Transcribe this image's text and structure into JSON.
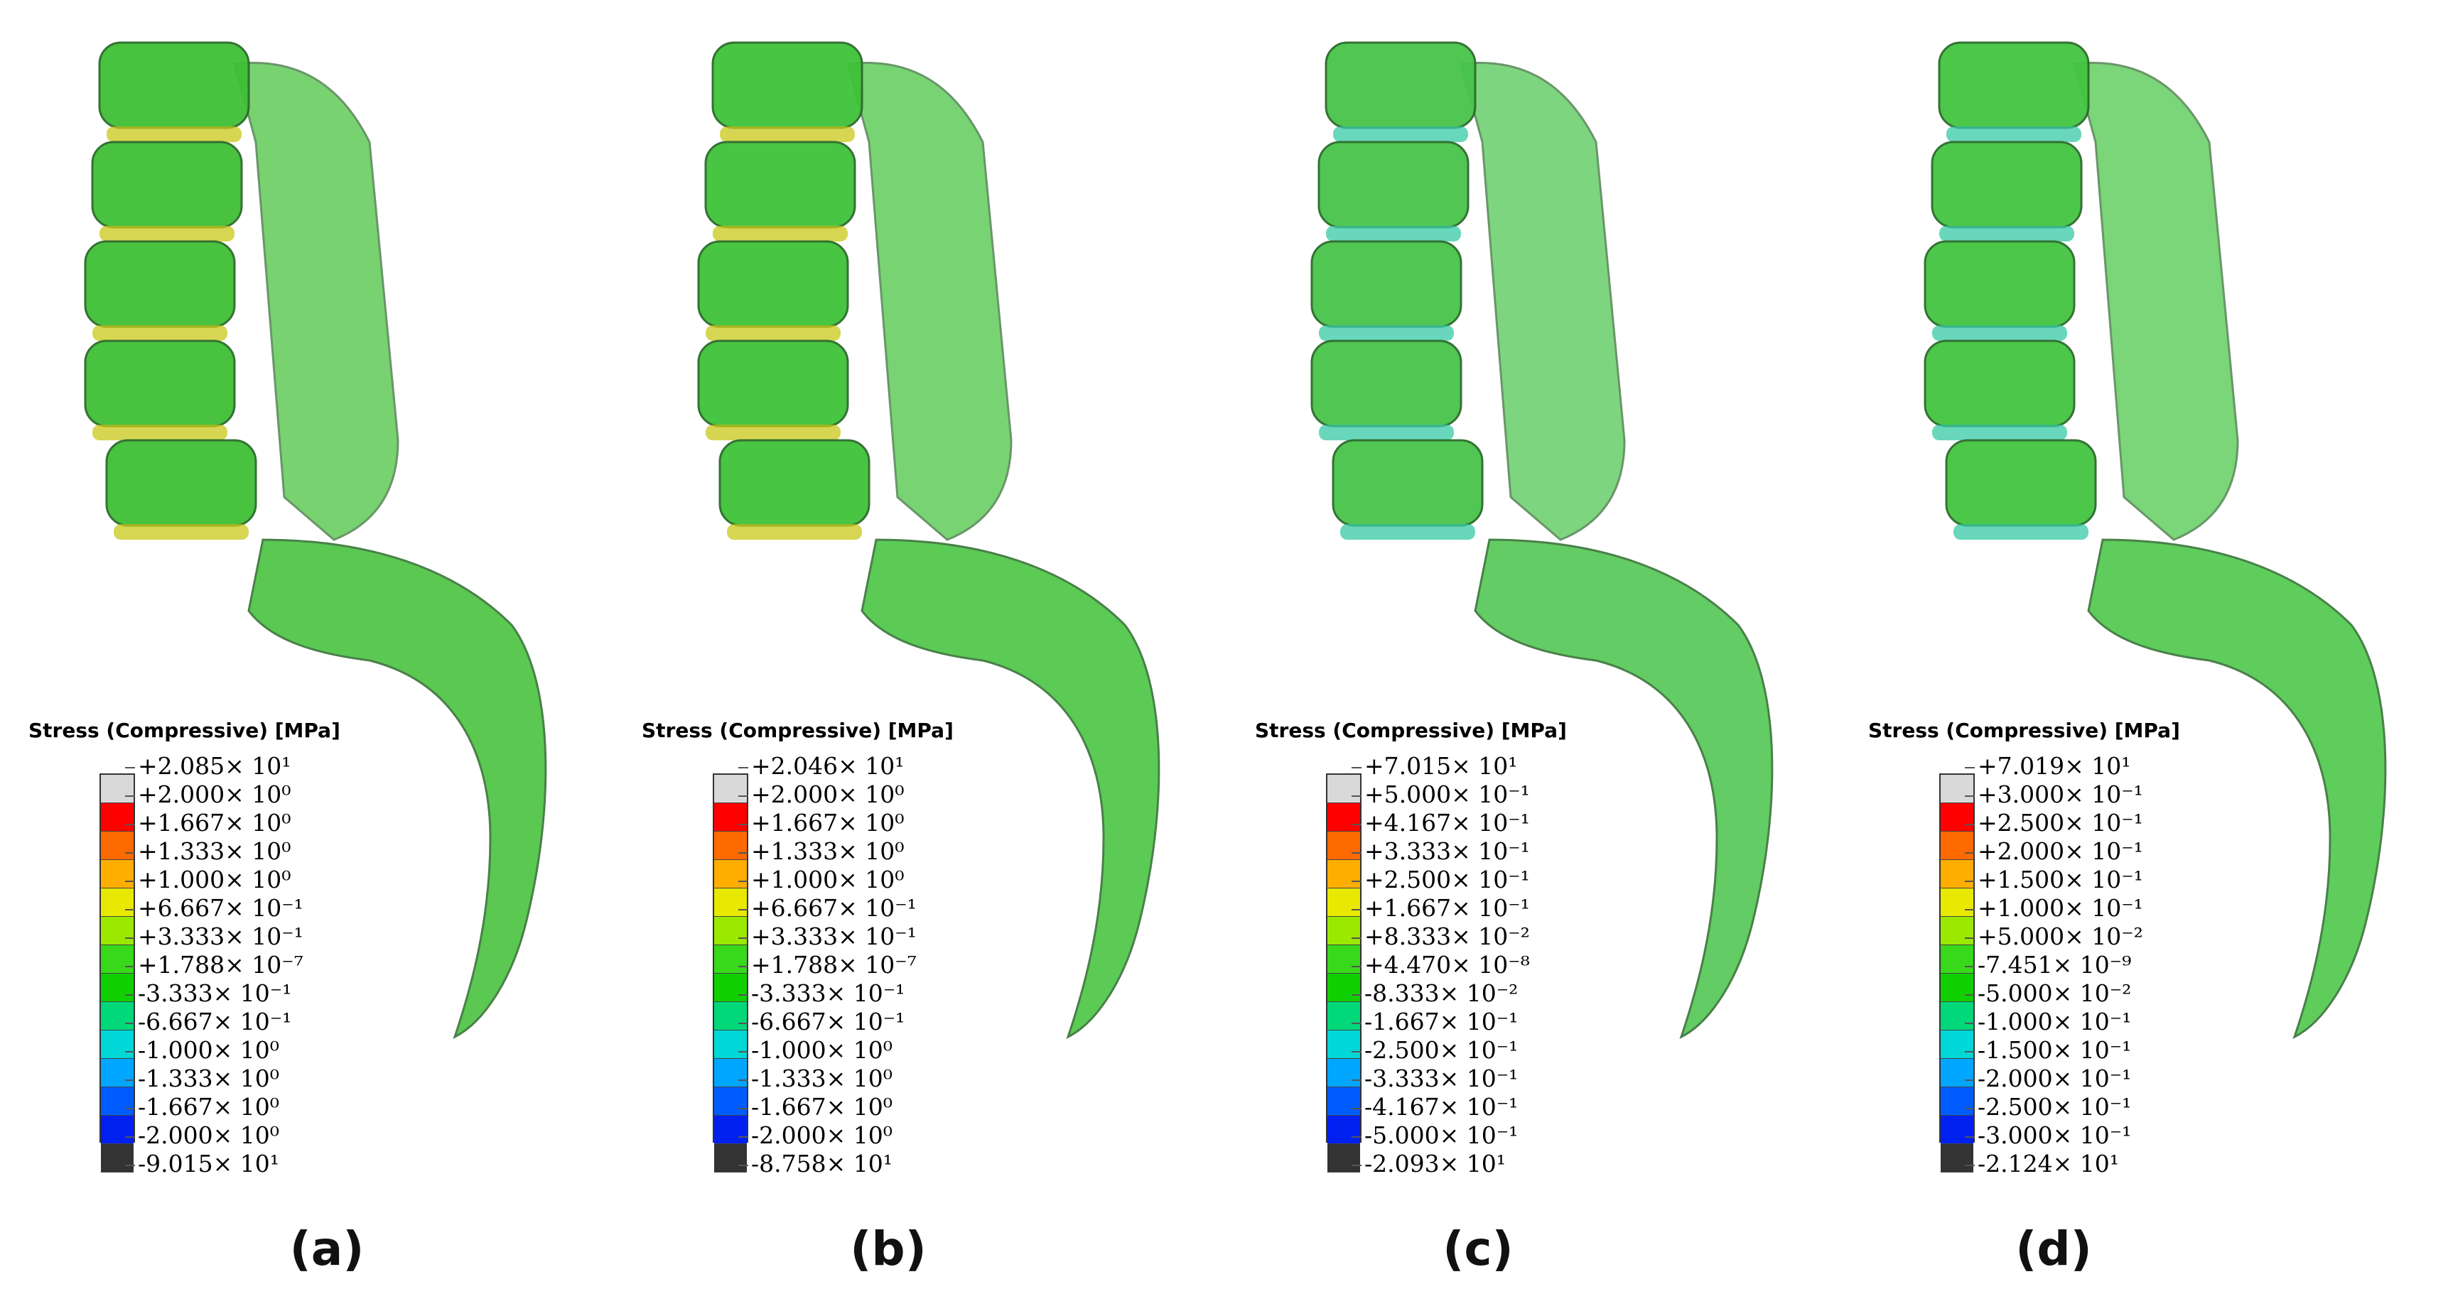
{
  "legend_colors": [
    "#d9d9d9",
    "#ff0000",
    "#ff6a00",
    "#ffae00",
    "#e8e800",
    "#9be800",
    "#38d81a",
    "#10d000",
    "#00d87a",
    "#00d7d7",
    "#00a6ff",
    "#005bff",
    "#0020f0",
    "#333333"
  ],
  "panels": [
    {
      "caption": "(a)",
      "legend_title": "Stress (Compressive) [MPa]",
      "labels": [
        "+2.085× 10¹",
        "+2.000× 10⁰",
        "+1.667× 10⁰",
        "+1.333× 10⁰",
        "+1.000× 10⁰",
        "+6.667× 10⁻¹",
        "+3.333× 10⁻¹",
        "+1.788× 10⁻⁷",
        "-3.333× 10⁻¹",
        "-6.667× 10⁻¹",
        "-1.000× 10⁰",
        "-1.333× 10⁰",
        "-1.667× 10⁰",
        "-2.000× 10⁰",
        "-9.015× 10¹"
      ]
    },
    {
      "caption": "(b)",
      "legend_title": "Stress (Compressive) [MPa]",
      "labels": [
        "+2.046× 10¹",
        "+2.000× 10⁰",
        "+1.667× 10⁰",
        "+1.333× 10⁰",
        "+1.000× 10⁰",
        "+6.667× 10⁻¹",
        "+3.333× 10⁻¹",
        "+1.788× 10⁻⁷",
        "-3.333× 10⁻¹",
        "-6.667× 10⁻¹",
        "-1.000× 10⁰",
        "-1.333× 10⁰",
        "-1.667× 10⁰",
        "-2.000× 10⁰",
        "-8.758× 10¹"
      ]
    },
    {
      "caption": "(c)",
      "legend_title": "Stress (Compressive) [MPa]",
      "labels": [
        "+7.015× 10¹",
        "+5.000× 10⁻¹",
        "+4.167× 10⁻¹",
        "+3.333× 10⁻¹",
        "+2.500× 10⁻¹",
        "+1.667× 10⁻¹",
        "+8.333× 10⁻²",
        "+4.470× 10⁻⁸",
        "-8.333× 10⁻²",
        "-1.667× 10⁻¹",
        "-2.500× 10⁻¹",
        "-3.333× 10⁻¹",
        "-4.167× 10⁻¹",
        "-5.000× 10⁻¹",
        "-2.093× 10¹"
      ]
    },
    {
      "caption": "(d)",
      "legend_title": "Stress (Compressive) [MPa]",
      "labels": [
        "+7.019× 10¹",
        "+3.000× 10⁻¹",
        "+2.500× 10⁻¹",
        "+2.000× 10⁻¹",
        "+1.500× 10⁻¹",
        "+1.000× 10⁻¹",
        "+5.000× 10⁻²",
        "-7.451× 10⁻⁹",
        "-5.000× 10⁻²",
        "-1.000× 10⁻¹",
        "-1.500× 10⁻¹",
        "-2.000× 10⁻¹",
        "-2.500× 10⁻¹",
        "-3.000× 10⁻¹",
        "-2.124× 10¹"
      ]
    }
  ]
}
